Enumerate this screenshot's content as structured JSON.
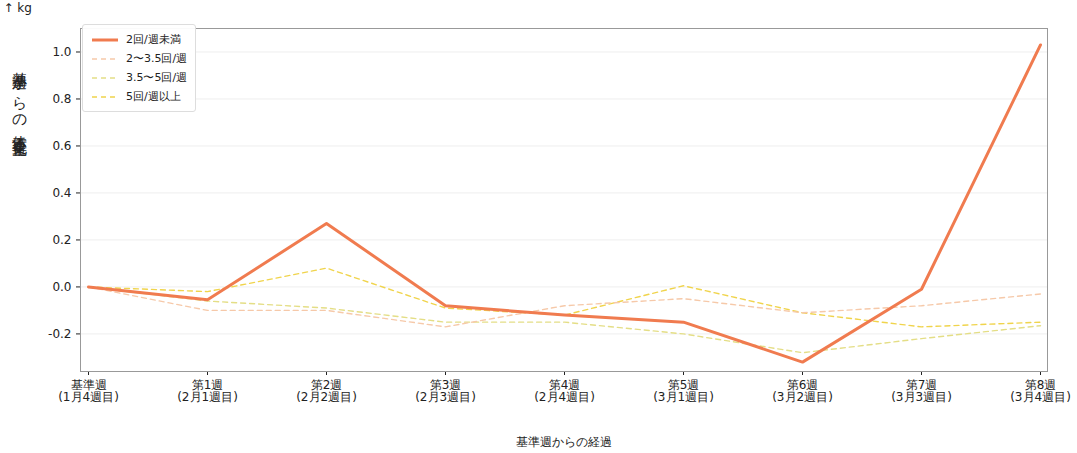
{
  "chart_data": {
    "type": "line",
    "xlabel": "基準週からの経過",
    "ylabel": "基準週からの体重変化量",
    "y_unit": "kg",
    "categories": [
      "基準週\n(1月4週目)",
      "第1週\n(2月1週目)",
      "第2週\n(2月2週目)",
      "第3週\n(2月3週目)",
      "第4週\n(2月4週目)",
      "第5週\n(3月1週目)",
      "第6週\n(3月2週目)",
      "第7週\n(3月3週目)",
      "第8週\n(3月4週目)"
    ],
    "series": [
      {
        "name": "2回/週未満",
        "color": "#f07b4f",
        "line_style": "solid",
        "values": [
          0,
          -0.055,
          0.27,
          -0.08,
          -0.12,
          -0.15,
          -0.32,
          -0.01,
          1.03
        ]
      },
      {
        "name": "2〜3.5回/週",
        "color": "#f6c9a9",
        "line_style": "dashed",
        "values": [
          0,
          -0.1,
          -0.1,
          -0.17,
          -0.08,
          -0.05,
          -0.11,
          -0.08,
          -0.03
        ]
      },
      {
        "name": "3.5〜5回/週",
        "color": "#e4de86",
        "line_style": "dashed",
        "values": [
          0,
          -0.06,
          -0.09,
          -0.15,
          -0.15,
          -0.2,
          -0.28,
          -0.22,
          -0.165
        ]
      },
      {
        "name": "5回/週以上",
        "color": "#f0d44c",
        "line_style": "dashed",
        "values": [
          0,
          -0.02,
          0.08,
          -0.09,
          -0.12,
          0.005,
          -0.11,
          -0.17,
          -0.15
        ]
      }
    ],
    "ylim": [
      -0.36,
      1.1
    ],
    "yticks": [
      -0.2,
      {
        "value": 0,
        "label": "0.0"
      },
      0.2,
      0.4,
      0.6,
      0.8,
      {
        "value": 1,
        "label": "1.0"
      }
    ],
    "grid": true,
    "legend": "top-left"
  }
}
